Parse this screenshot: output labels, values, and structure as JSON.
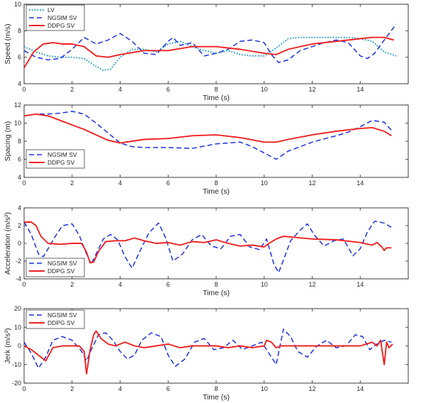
{
  "colors": {
    "lv": "#1a9ac9",
    "ngsim": "#1f2fe0",
    "ddpg": "#ee2222",
    "axis": "#262626"
  },
  "chart_data": [
    {
      "type": "line",
      "xlabel": "Time (s)",
      "ylabel": "Speed (m/s)",
      "xlim": [
        0,
        16
      ],
      "ylim": [
        4,
        10
      ],
      "xticks": [
        0,
        2,
        4,
        6,
        8,
        10,
        12,
        14
      ],
      "yticks": [
        4,
        6,
        8,
        10
      ],
      "legend_position": "top-left",
      "series": [
        {
          "name": "LV",
          "style": "dotted",
          "color_key": "lv",
          "x": [
            0,
            0.5,
            1,
            1.5,
            2,
            2.5,
            3,
            3.3,
            3.6,
            4,
            4.5,
            5,
            5.5,
            6,
            6.5,
            7,
            7.5,
            8,
            8.5,
            9,
            9.5,
            10,
            10.5,
            11,
            11.5,
            12,
            12.5,
            13,
            13.5,
            14,
            14.5,
            15,
            15.5
          ],
          "y": [
            6.8,
            6.4,
            6.1,
            6.0,
            6.0,
            5.9,
            5.3,
            5.0,
            5.1,
            6.0,
            6.6,
            6.6,
            6.4,
            7.0,
            7.2,
            6.8,
            6.5,
            6.3,
            6.5,
            6.2,
            6.1,
            6.1,
            6.7,
            7.4,
            7.5,
            7.5,
            7.5,
            7.5,
            7.5,
            7.4,
            7.2,
            6.4,
            6.1
          ]
        },
        {
          "name": "NGSIM SV",
          "style": "dashed",
          "color_key": "ngsim",
          "x": [
            0,
            0.5,
            1,
            1.5,
            2,
            2.5,
            3,
            3.5,
            4,
            4.5,
            5,
            5.5,
            6,
            6.2,
            6.5,
            7,
            7.5,
            8,
            8.5,
            9,
            9.5,
            10,
            10.3,
            10.6,
            11,
            11.5,
            12,
            12.5,
            13,
            13.5,
            14,
            14.3,
            14.6,
            15,
            15.5
          ],
          "y": [
            6.5,
            6.0,
            5.8,
            5.9,
            6.6,
            7.5,
            7.0,
            7.3,
            7.8,
            7.2,
            6.3,
            6.2,
            7.2,
            7.5,
            6.9,
            7.1,
            6.1,
            6.3,
            6.6,
            7.2,
            7.3,
            7.1,
            6.2,
            5.6,
            5.8,
            6.5,
            6.8,
            7.1,
            7.3,
            7.1,
            6.1,
            5.9,
            6.3,
            7.3,
            8.5
          ]
        },
        {
          "name": "DDPG SV",
          "style": "solid",
          "color_key": "ddpg",
          "x": [
            0,
            0.4,
            0.8,
            1.2,
            1.6,
            2,
            2.5,
            3,
            3.5,
            4,
            5,
            6,
            7,
            8,
            9,
            10,
            10.5,
            11,
            12,
            13,
            14,
            14.5,
            15,
            15.4
          ],
          "y": [
            5.2,
            6.4,
            7.0,
            7.1,
            7.0,
            7.0,
            6.8,
            6.1,
            6.0,
            6.2,
            6.5,
            6.5,
            6.8,
            6.8,
            6.6,
            6.3,
            6.2,
            6.6,
            7.0,
            7.2,
            7.4,
            7.5,
            7.5,
            7.3
          ]
        }
      ]
    },
    {
      "type": "line",
      "xlabel": "Time (s)",
      "ylabel": "Spacing (m)",
      "xlim": [
        0,
        16
      ],
      "ylim": [
        4,
        12
      ],
      "xticks": [
        0,
        2,
        4,
        6,
        8,
        10,
        12,
        14
      ],
      "yticks": [
        4,
        6,
        8,
        10,
        12
      ],
      "legend_position": "bottom-left",
      "series": [
        {
          "name": "NGSIM SV",
          "style": "dashed",
          "color_key": "ngsim",
          "x": [
            0,
            0.5,
            1,
            1.5,
            2,
            2.5,
            3,
            3.5,
            4,
            4.5,
            5,
            6,
            7,
            8,
            9,
            9.5,
            10,
            10.5,
            11,
            12,
            13,
            13.5,
            14,
            14.5,
            15,
            15.3
          ],
          "y": [
            10.8,
            11.0,
            11.0,
            11.1,
            11.3,
            11.0,
            10.0,
            8.9,
            7.8,
            7.4,
            7.3,
            7.3,
            7.2,
            7.7,
            7.9,
            7.4,
            6.7,
            6.0,
            6.9,
            7.9,
            8.6,
            9.0,
            9.6,
            10.3,
            10.1,
            9.2
          ]
        },
        {
          "name": "DDPG SV",
          "style": "solid",
          "color_key": "ddpg",
          "x": [
            0,
            0.5,
            1,
            1.5,
            2,
            2.5,
            3,
            3.5,
            4,
            4.5,
            5,
            6,
            7,
            8,
            9,
            10,
            10.5,
            11,
            12,
            13,
            14,
            14.5,
            15,
            15.3
          ],
          "y": [
            10.8,
            11.0,
            10.8,
            10.3,
            9.8,
            9.3,
            8.7,
            8.1,
            7.8,
            8.0,
            8.2,
            8.3,
            8.6,
            8.7,
            8.4,
            7.9,
            7.9,
            8.2,
            8.7,
            9.1,
            9.4,
            9.5,
            9.1,
            8.6
          ]
        }
      ]
    },
    {
      "type": "line",
      "xlabel": "Time (s)",
      "ylabel": "Acceleration (m/s²)",
      "xlim": [
        0,
        16
      ],
      "ylim": [
        -4,
        4
      ],
      "xticks": [
        0,
        2,
        4,
        6,
        8,
        10,
        12,
        14
      ],
      "yticks": [
        -4,
        -2,
        0,
        2,
        4
      ],
      "legend_position": "bottom-left",
      "series": [
        {
          "name": "NGSIM SV",
          "style": "dashed",
          "color_key": "ngsim",
          "x": [
            0,
            0.3,
            0.6,
            0.8,
            1.0,
            1.3,
            1.6,
            2.0,
            2.3,
            2.6,
            2.8,
            3.0,
            3.3,
            3.6,
            3.9,
            4.2,
            4.5,
            4.8,
            5.2,
            5.6,
            5.9,
            6.2,
            6.6,
            7.0,
            7.4,
            7.8,
            8.2,
            8.6,
            9.0,
            9.4,
            9.8,
            10.1,
            10.4,
            10.6,
            10.8,
            11.1,
            11.5,
            11.8,
            12.1,
            12.5,
            12.9,
            13.3,
            13.7,
            14.0,
            14.3,
            14.6,
            15.0,
            15.3
          ],
          "y": [
            2.4,
            1.0,
            -1.2,
            -1.5,
            -0.6,
            0.8,
            2.0,
            2.2,
            0.9,
            -1.2,
            -2.3,
            -1.2,
            0.5,
            1.0,
            0.4,
            -1.5,
            -2.8,
            -1.0,
            1.2,
            2.3,
            0.6,
            -2.0,
            -1.2,
            0.4,
            1.0,
            -0.3,
            -0.6,
            0.8,
            1.0,
            -0.4,
            -0.7,
            0.5,
            -2.3,
            -3.3,
            -1.9,
            0.3,
            1.5,
            2.2,
            0.9,
            -0.3,
            0.3,
            0.5,
            -1.4,
            -0.6,
            1.3,
            2.5,
            2.3,
            1.8
          ]
        },
        {
          "name": "DDPG SV",
          "style": "solid",
          "color_key": "ddpg",
          "x": [
            0,
            0.3,
            0.5,
            0.7,
            1.0,
            1.5,
            2.0,
            2.4,
            2.6,
            2.75,
            2.9,
            3.1,
            3.4,
            3.8,
            4.2,
            4.6,
            5.0,
            5.5,
            6.0,
            6.5,
            7.0,
            7.5,
            8.0,
            8.5,
            9.0,
            9.5,
            10.0,
            10.2,
            10.5,
            10.8,
            11.2,
            12.0,
            13.0,
            14.0,
            14.5,
            14.7,
            14.9,
            15.0,
            15.1,
            15.3
          ],
          "y": [
            2.4,
            2.4,
            2.0,
            0.8,
            0,
            -0.1,
            0,
            0,
            -1.0,
            -2.2,
            -2.1,
            -0.9,
            0.2,
            0.3,
            0.3,
            0.6,
            0.3,
            0,
            0.1,
            -0.2,
            0.2,
            0.1,
            0.4,
            0,
            -0.3,
            -0.2,
            -0.4,
            0,
            0.5,
            0.8,
            0.7,
            0.5,
            0.4,
            0.1,
            -0.2,
            0.1,
            -0.4,
            -0.8,
            -0.5,
            -0.5
          ]
        }
      ]
    },
    {
      "type": "line",
      "xlabel": "Time (s)",
      "ylabel": "Jerk (m/s³)",
      "xlim": [
        0,
        16
      ],
      "ylim": [
        -20,
        20
      ],
      "xticks": [
        0,
        2,
        4,
        6,
        8,
        10,
        12,
        14
      ],
      "yticks": [
        -20,
        -10,
        0,
        10,
        20
      ],
      "legend_position": "top-left",
      "series": [
        {
          "name": "NGSIM SV",
          "style": "dashed",
          "color_key": "ngsim",
          "x": [
            0,
            0.3,
            0.6,
            0.9,
            1.2,
            1.6,
            2.0,
            2.4,
            2.6,
            2.8,
            3.1,
            3.4,
            3.7,
            4.0,
            4.3,
            4.6,
            4.9,
            5.3,
            5.7,
            6.0,
            6.3,
            6.7,
            7.1,
            7.5,
            7.9,
            8.3,
            8.7,
            9.1,
            9.5,
            9.9,
            10.2,
            10.5,
            10.8,
            11.1,
            11.4,
            11.8,
            12.2,
            12.6,
            13.0,
            13.4,
            13.8,
            14.1,
            14.4,
            14.7,
            15.0,
            15.3
          ],
          "y": [
            2,
            -4,
            -12,
            -6,
            3,
            5,
            3,
            -3,
            -8,
            -2,
            6,
            7,
            3,
            -3,
            -7,
            -5,
            3,
            7,
            5,
            -5,
            -11,
            -7,
            2,
            4,
            -2,
            -1,
            3,
            -2,
            0,
            2,
            -4,
            -10,
            9,
            5,
            -3,
            -6,
            0,
            3,
            -1,
            0,
            6,
            5,
            -2,
            1,
            3,
            2
          ]
        },
        {
          "name": "DDPG SV",
          "style": "solid",
          "color_key": "ddpg",
          "x": [
            0,
            0.3,
            0.6,
            0.9,
            1.2,
            1.6,
            2.0,
            2.3,
            2.5,
            2.6,
            2.75,
            2.9,
            3.0,
            3.2,
            3.5,
            3.8,
            4.2,
            4.6,
            5.0,
            5.5,
            6.0,
            6.5,
            7.0,
            7.5,
            8.0,
            8.5,
            9.0,
            9.5,
            10.0,
            10.1,
            10.3,
            10.5,
            10.7,
            11.0,
            12.0,
            13.0,
            14.0,
            14.5,
            14.7,
            14.85,
            15.0,
            15.1,
            15.2,
            15.35
          ],
          "y": [
            0,
            -2,
            -5,
            -8,
            -1,
            0,
            0,
            0,
            -3,
            -15,
            -2,
            6,
            8,
            4,
            1,
            0,
            2,
            0,
            -1,
            0,
            1,
            -1,
            0,
            0,
            0,
            -1,
            0,
            -1,
            0,
            3,
            2,
            -1,
            0,
            0,
            0,
            0,
            0,
            2,
            0,
            3,
            -10,
            2,
            -1,
            1
          ]
        }
      ]
    }
  ]
}
